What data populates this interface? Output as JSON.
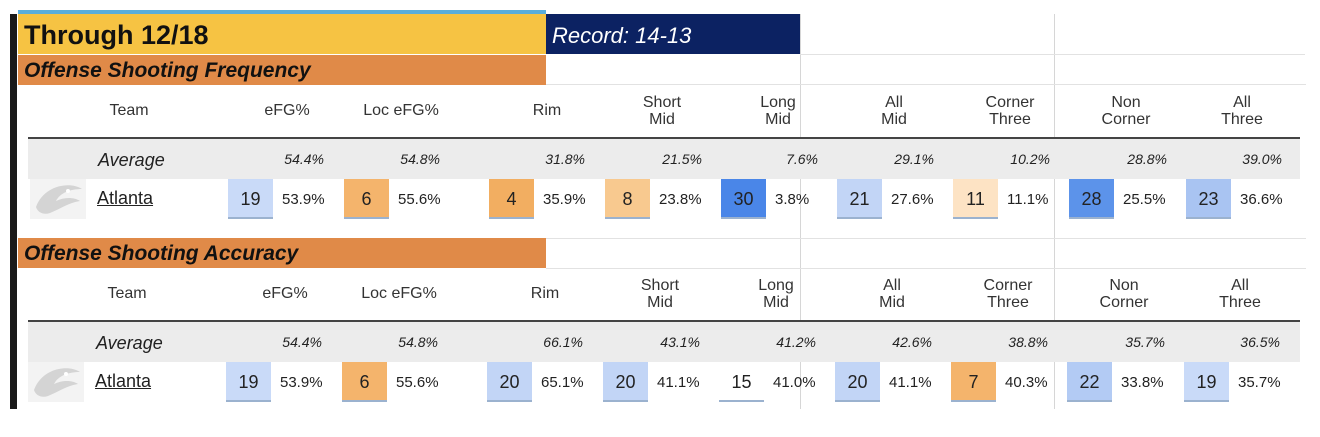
{
  "title": "Through 12/18",
  "record": "Record: 14-13",
  "columns": [
    {
      "label": "Team",
      "lines": [
        "Team"
      ]
    },
    {
      "label": "eFG%",
      "lines": [
        "eFG%"
      ]
    },
    {
      "label": "Loc eFG%",
      "lines": [
        "Loc eFG%"
      ]
    },
    {
      "label": "Rim",
      "lines": [
        "Rim"
      ]
    },
    {
      "label": "Short Mid",
      "lines": [
        "Short",
        "Mid"
      ]
    },
    {
      "label": "Long Mid",
      "lines": [
        "Long",
        "Mid"
      ]
    },
    {
      "label": "All Mid",
      "lines": [
        "All",
        "Mid"
      ]
    },
    {
      "label": "Corner Three",
      "lines": [
        "Corner",
        "Three"
      ]
    },
    {
      "label": "Non Corner",
      "lines": [
        "Non",
        "Corner"
      ]
    },
    {
      "label": "All Three",
      "lines": [
        "All",
        "Three"
      ]
    }
  ],
  "sections": [
    {
      "title": "Offense Shooting Frequency",
      "average_label": "Average",
      "averages": [
        "54.4%",
        "54.8%",
        "31.8%",
        "21.5%",
        "7.6%",
        "29.1%",
        "10.2%",
        "28.8%",
        "39.0%"
      ],
      "team": "Atlanta",
      "cells": [
        {
          "rank": "19",
          "value": "53.9%",
          "color": "#c9daf8"
        },
        {
          "rank": "6",
          "value": "55.6%",
          "color": "#f4b46c"
        },
        {
          "rank": "4",
          "value": "35.9%",
          "color": "#f2ae61"
        },
        {
          "rank": "8",
          "value": "23.8%",
          "color": "#f8c98f"
        },
        {
          "rank": "30",
          "value": "3.8%",
          "color": "#4a86e8"
        },
        {
          "rank": "21",
          "value": "27.6%",
          "color": "#c2d5f6"
        },
        {
          "rank": "11",
          "value": "11.1%",
          "color": "#fde3c4"
        },
        {
          "rank": "28",
          "value": "25.5%",
          "color": "#5c93ea"
        },
        {
          "rank": "23",
          "value": "36.6%",
          "color": "#a9c4f2"
        }
      ]
    },
    {
      "title": "Offense Shooting Accuracy",
      "average_label": "Average",
      "averages": [
        "54.4%",
        "54.8%",
        "66.1%",
        "43.1%",
        "41.2%",
        "42.6%",
        "38.8%",
        "35.7%",
        "36.5%"
      ],
      "team": "Atlanta",
      "cells": [
        {
          "rank": "19",
          "value": "53.9%",
          "color": "#c9daf8"
        },
        {
          "rank": "6",
          "value": "55.6%",
          "color": "#f4b46c"
        },
        {
          "rank": "20",
          "value": "65.1%",
          "color": "#c2d5f6"
        },
        {
          "rank": "20",
          "value": "41.1%",
          "color": "#c2d5f6"
        },
        {
          "rank": "15",
          "value": "41.0%",
          "color": "#ffffff"
        },
        {
          "rank": "20",
          "value": "41.1%",
          "color": "#c2d5f6"
        },
        {
          "rank": "7",
          "value": "40.3%",
          "color": "#f4b46c"
        },
        {
          "rank": "22",
          "value": "33.8%",
          "color": "#b3cbf4"
        },
        {
          "rank": "19",
          "value": "35.7%",
          "color": "#c9daf8"
        }
      ]
    }
  ]
}
